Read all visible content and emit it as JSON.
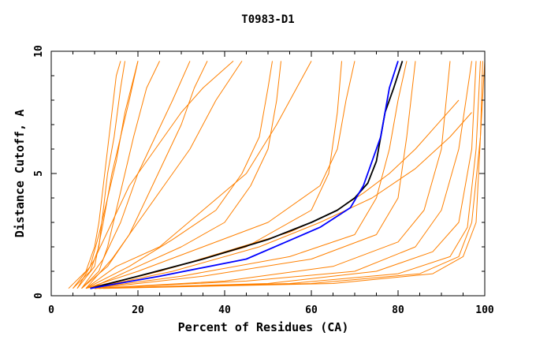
{
  "chart_data": {
    "type": "line",
    "title": "T0983-D1",
    "xlabel": "Percent of Residues (CA)",
    "ylabel": "Distance Cutoff, A",
    "xlim": [
      0,
      100
    ],
    "ylim": [
      0,
      10
    ],
    "x_ticks": [
      0,
      20,
      40,
      60,
      80,
      100
    ],
    "y_ticks": [
      0,
      5,
      10
    ],
    "grid": false,
    "legend": "none",
    "colors": {
      "models": "#ff8000",
      "highlight_black": "#000000",
      "highlight_blue": "#0000ff",
      "axis": "#000000"
    },
    "series": [
      {
        "color": "#ff8000",
        "x": [
          4,
          8,
          10,
          11,
          12,
          13,
          14,
          15,
          16
        ],
        "y": [
          0.3,
          1.0,
          2.0,
          3.0,
          4.5,
          6.0,
          7.5,
          9.0,
          9.6
        ]
      },
      {
        "color": "#ff8000",
        "x": [
          5,
          9,
          11,
          12,
          13,
          14.5,
          16,
          17
        ],
        "y": [
          0.3,
          1.0,
          2.0,
          3.5,
          5.0,
          6.5,
          8.5,
          9.6
        ]
      },
      {
        "color": "#ff8000",
        "x": [
          6,
          10,
          12,
          14,
          16,
          18,
          20
        ],
        "y": [
          0.3,
          1.2,
          3.0,
          5.0,
          6.5,
          8.0,
          9.6
        ]
      },
      {
        "color": "#ff8000",
        "x": [
          7,
          12,
          16,
          20,
          24,
          28,
          32
        ],
        "y": [
          0.3,
          1.5,
          3.0,
          5.0,
          6.5,
          8.0,
          9.6
        ]
      },
      {
        "color": "#ff8000",
        "x": [
          7,
          11,
          13,
          15,
          17,
          19,
          22,
          25
        ],
        "y": [
          0.3,
          1.0,
          2.0,
          3.5,
          5.0,
          6.5,
          8.5,
          9.6
        ]
      },
      {
        "color": "#ff8000",
        "x": [
          6,
          10,
          14,
          18,
          22,
          26,
          30,
          35,
          42
        ],
        "y": [
          0.3,
          1.5,
          3.0,
          4.5,
          5.5,
          6.5,
          7.5,
          8.5,
          9.6
        ]
      },
      {
        "color": "#ff8000",
        "x": [
          8,
          14,
          20,
          26,
          32,
          38,
          44
        ],
        "y": [
          0.3,
          1.5,
          3.0,
          4.5,
          6.0,
          8.0,
          9.6
        ]
      },
      {
        "color": "#ff8000",
        "x": [
          8,
          15,
          25,
          35,
          45,
          52,
          60
        ],
        "y": [
          0.3,
          1.2,
          2.0,
          3.5,
          5.0,
          7.0,
          9.6
        ]
      },
      {
        "color": "#ff8000",
        "x": [
          8,
          20,
          35,
          50,
          62,
          66,
          68,
          70
        ],
        "y": [
          0.3,
          1.0,
          2.0,
          3.0,
          4.5,
          6.0,
          8.0,
          9.6
        ]
      },
      {
        "color": "#ff8000",
        "x": [
          8,
          25,
          45,
          60,
          64,
          66,
          67
        ],
        "y": [
          0.3,
          1.0,
          2.0,
          3.5,
          5.0,
          7.5,
          9.6
        ]
      },
      {
        "color": "#ff8000",
        "x": [
          9,
          20,
          30,
          40,
          46,
          50,
          52,
          53
        ],
        "y": [
          0.3,
          1.2,
          2.0,
          3.0,
          4.5,
          6.0,
          8.0,
          9.6
        ]
      },
      {
        "color": "#ff8000",
        "x": [
          9,
          30,
          55,
          70,
          75,
          78,
          80,
          82
        ],
        "y": [
          0.3,
          0.8,
          1.6,
          2.5,
          4.0,
          6.0,
          8.0,
          9.6
        ]
      },
      {
        "color": "#ff8000",
        "x": [
          10,
          35,
          60,
          75,
          80,
          82,
          84
        ],
        "y": [
          0.3,
          0.8,
          1.5,
          2.5,
          4.0,
          6.5,
          9.6
        ]
      },
      {
        "color": "#ff8000",
        "x": [
          10,
          40,
          65,
          80,
          86,
          90,
          92
        ],
        "y": [
          0.3,
          0.6,
          1.2,
          2.2,
          3.5,
          6.0,
          9.6
        ]
      },
      {
        "color": "#ff8000",
        "x": [
          10,
          45,
          70,
          84,
          90,
          94,
          97
        ],
        "y": [
          0.3,
          0.6,
          1.0,
          2.0,
          3.5,
          6.0,
          9.6
        ]
      },
      {
        "color": "#ff8000",
        "x": [
          10,
          50,
          75,
          88,
          94,
          97,
          98
        ],
        "y": [
          0.3,
          0.5,
          1.0,
          1.8,
          3.0,
          6.0,
          9.6
        ]
      },
      {
        "color": "#ff8000",
        "x": [
          11,
          55,
          80,
          92,
          96,
          98,
          99
        ],
        "y": [
          0.3,
          0.5,
          0.9,
          1.6,
          2.8,
          6.0,
          9.6
        ]
      },
      {
        "color": "#ff8000",
        "x": [
          11,
          60,
          85,
          94,
          97,
          99,
          99.5
        ],
        "y": [
          0.3,
          0.5,
          0.9,
          1.6,
          3.0,
          6.5,
          9.6
        ]
      },
      {
        "color": "#ff8000",
        "x": [
          12,
          65,
          88,
          95,
          98,
          99,
          100
        ],
        "y": [
          0.3,
          0.5,
          0.9,
          1.6,
          3.0,
          6.5,
          9.6
        ]
      },
      {
        "color": "#ff8000",
        "x": [
          9,
          25,
          40,
          55,
          65,
          72,
          78,
          84,
          90,
          94
        ],
        "y": [
          0.3,
          1.0,
          1.8,
          2.6,
          3.4,
          4.2,
          5.0,
          6.0,
          7.2,
          8.0
        ]
      },
      {
        "color": "#ff8000",
        "x": [
          9,
          28,
          48,
          62,
          74,
          84,
          92,
          97
        ],
        "y": [
          0.3,
          1.0,
          2.0,
          3.0,
          4.0,
          5.2,
          6.5,
          7.5
        ]
      },
      {
        "color": "#ff8000",
        "x": [
          8,
          18,
          28,
          38,
          44,
          48,
          50,
          51
        ],
        "y": [
          0.3,
          1.2,
          2.3,
          3.5,
          5.0,
          6.5,
          8.5,
          9.6
        ]
      },
      {
        "color": "#ff8000",
        "x": [
          7,
          13,
          18,
          22,
          26,
          30,
          33,
          36
        ],
        "y": [
          0.3,
          1.2,
          2.5,
          4.0,
          5.5,
          7.0,
          8.5,
          9.6
        ]
      },
      {
        "color": "#ff8000",
        "x": [
          5,
          9,
          11,
          13,
          15,
          17,
          20
        ],
        "y": [
          0.3,
          1.2,
          2.5,
          4.0,
          5.5,
          7.5,
          9.6
        ]
      },
      {
        "color": "#000000",
        "name": "",
        "x": [
          9,
          20,
          35,
          50,
          60,
          66,
          70,
          73,
          75,
          76,
          77,
          79,
          81
        ],
        "y": [
          0.3,
          0.8,
          1.5,
          2.3,
          3.0,
          3.5,
          4.0,
          4.6,
          5.5,
          6.5,
          7.5,
          8.5,
          9.6
        ]
      },
      {
        "color": "#0000ff",
        "name": "",
        "x": [
          9,
          25,
          45,
          62,
          69,
          72,
          74,
          76,
          77,
          78,
          80
        ],
        "y": [
          0.3,
          0.8,
          1.5,
          2.8,
          3.6,
          4.5,
          5.5,
          6.5,
          7.5,
          8.5,
          9.6
        ]
      }
    ]
  }
}
